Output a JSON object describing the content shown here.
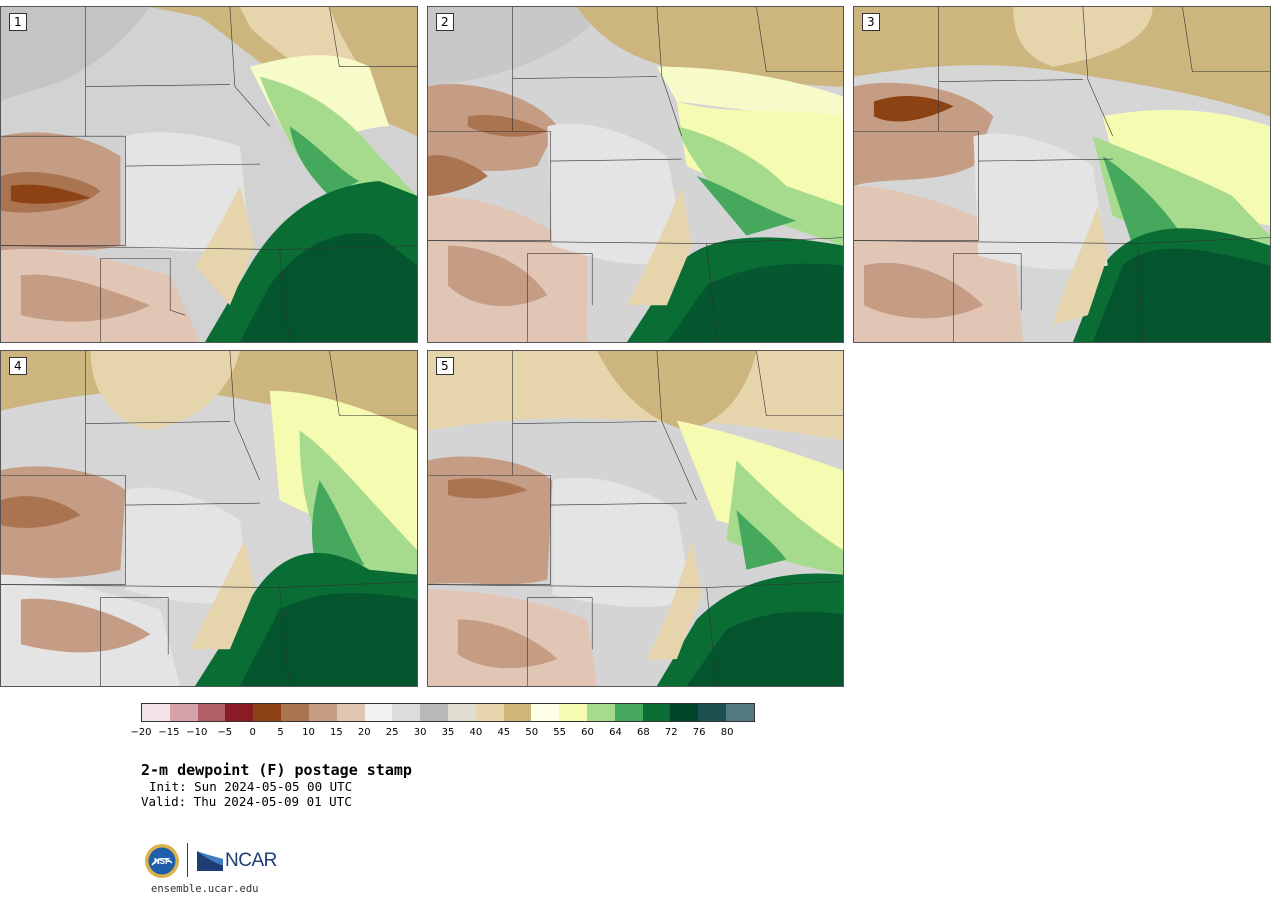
{
  "panels": [
    {
      "label": "1"
    },
    {
      "label": "2"
    },
    {
      "label": "3"
    },
    {
      "label": "4"
    },
    {
      "label": "5"
    }
  ],
  "colorbar": {
    "colors": [
      "#f2e3e6",
      "#d4a2a8",
      "#b25e66",
      "#8a1a24",
      "#8c4212",
      "#ab7450",
      "#c59c84",
      "#e1c6b6",
      "#f2f2f2",
      "#dcdcdc",
      "#b9b9b9",
      "#e0ded0",
      "#e8d5ae",
      "#cfb679",
      "#ffffe6",
      "#f6fbb2",
      "#a6db8e",
      "#45a85c",
      "#0a6d34",
      "#00452a",
      "#1d5150",
      "#537a80"
    ],
    "ticks": [
      "−20",
      "−15",
      "−10",
      "−5",
      "0",
      "5",
      "10",
      "15",
      "20",
      "25",
      "30",
      "35",
      "40",
      "45",
      "50",
      "55",
      "60",
      "64",
      "68",
      "72",
      "76",
      "80"
    ]
  },
  "title": "2-m dewpoint (F) postage stamp",
  "init": "Init: Sun 2024-05-05 00 UTC",
  "valid": "Valid: Thu 2024-05-09 01 UTC",
  "logos": {
    "nsf": "NSF",
    "ncar": "NCAR"
  },
  "footer_url": "ensemble.ucar.edu"
}
